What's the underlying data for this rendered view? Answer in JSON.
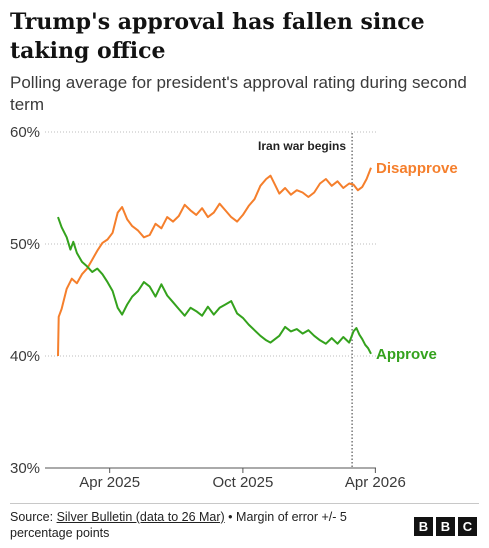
{
  "header": {
    "title": "Trump's approval has fallen since taking office",
    "subtitle": "Polling average for president's approval rating during second term"
  },
  "chart_data": {
    "type": "line",
    "title": "Trump's approval has fallen since taking office",
    "subtitle": "Polling average for president's approval rating during second term",
    "xlabel": "",
    "ylabel": "",
    "x_range": [
      "2025-01-20",
      "2026-03-26"
    ],
    "ylim": [
      30,
      60
    ],
    "y_ticks": [
      30,
      40,
      50,
      60
    ],
    "y_tick_labels": [
      "30%",
      "40%",
      "50%",
      "60%"
    ],
    "x_ticks": [
      "2025-04-01",
      "2025-10-01",
      "2026-04-01"
    ],
    "x_tick_labels": [
      "Apr 2025",
      "Oct 2025",
      "Apr 2026"
    ],
    "grid": "horizontal dotted",
    "legend": "direct labels at line ends",
    "annotations": [
      {
        "date": "2026-02-28",
        "label": "Iran war begins",
        "style": "dotted vertical line"
      }
    ],
    "series": [
      {
        "name": "Disapprove",
        "color": "#f57f2c",
        "points": [
          [
            "2025-01-20",
            40.0
          ],
          [
            "2025-01-21",
            43.5
          ],
          [
            "2025-01-25",
            44.2
          ],
          [
            "2025-02-01",
            46.0
          ],
          [
            "2025-02-08",
            46.9
          ],
          [
            "2025-02-15",
            46.5
          ],
          [
            "2025-02-22",
            47.3
          ],
          [
            "2025-03-01",
            47.8
          ],
          [
            "2025-03-08",
            48.6
          ],
          [
            "2025-03-15",
            49.4
          ],
          [
            "2025-03-22",
            50.1
          ],
          [
            "2025-03-29",
            50.4
          ],
          [
            "2025-04-05",
            51.0
          ],
          [
            "2025-04-12",
            52.8
          ],
          [
            "2025-04-18",
            53.3
          ],
          [
            "2025-04-25",
            52.2
          ],
          [
            "2025-05-02",
            51.6
          ],
          [
            "2025-05-10",
            51.2
          ],
          [
            "2025-05-18",
            50.6
          ],
          [
            "2025-05-26",
            50.8
          ],
          [
            "2025-06-03",
            51.8
          ],
          [
            "2025-06-11",
            51.4
          ],
          [
            "2025-06-19",
            52.4
          ],
          [
            "2025-06-27",
            52.0
          ],
          [
            "2025-07-05",
            52.5
          ],
          [
            "2025-07-13",
            53.5
          ],
          [
            "2025-07-21",
            53.0
          ],
          [
            "2025-07-29",
            52.6
          ],
          [
            "2025-08-06",
            53.2
          ],
          [
            "2025-08-14",
            52.4
          ],
          [
            "2025-08-22",
            52.8
          ],
          [
            "2025-08-30",
            53.6
          ],
          [
            "2025-09-07",
            53.0
          ],
          [
            "2025-09-15",
            52.4
          ],
          [
            "2025-09-23",
            52.0
          ],
          [
            "2025-10-01",
            52.6
          ],
          [
            "2025-10-09",
            53.4
          ],
          [
            "2025-10-17",
            54.0
          ],
          [
            "2025-10-25",
            55.2
          ],
          [
            "2025-11-02",
            55.8
          ],
          [
            "2025-11-08",
            56.1
          ],
          [
            "2025-11-14",
            55.3
          ],
          [
            "2025-11-20",
            54.5
          ],
          [
            "2025-11-28",
            55.0
          ],
          [
            "2025-12-06",
            54.4
          ],
          [
            "2025-12-14",
            54.8
          ],
          [
            "2025-12-22",
            54.6
          ],
          [
            "2025-12-30",
            54.2
          ],
          [
            "2026-01-07",
            54.6
          ],
          [
            "2026-01-15",
            55.4
          ],
          [
            "2026-01-23",
            55.8
          ],
          [
            "2026-01-31",
            55.2
          ],
          [
            "2026-02-08",
            55.6
          ],
          [
            "2026-02-16",
            55.0
          ],
          [
            "2026-02-24",
            55.4
          ],
          [
            "2026-03-02",
            55.3
          ],
          [
            "2026-03-08",
            54.8
          ],
          [
            "2026-03-14",
            55.1
          ],
          [
            "2026-03-20",
            55.8
          ],
          [
            "2026-03-26",
            56.8
          ]
        ]
      },
      {
        "name": "Approve",
        "color": "#34a21d",
        "points": [
          [
            "2025-01-20",
            52.4
          ],
          [
            "2025-01-25",
            51.5
          ],
          [
            "2025-02-01",
            50.6
          ],
          [
            "2025-02-06",
            49.5
          ],
          [
            "2025-02-10",
            50.2
          ],
          [
            "2025-02-15",
            49.2
          ],
          [
            "2025-02-22",
            48.4
          ],
          [
            "2025-03-01",
            48.0
          ],
          [
            "2025-03-08",
            47.5
          ],
          [
            "2025-03-15",
            47.8
          ],
          [
            "2025-03-22",
            47.3
          ],
          [
            "2025-03-29",
            46.6
          ],
          [
            "2025-04-05",
            45.8
          ],
          [
            "2025-04-12",
            44.3
          ],
          [
            "2025-04-18",
            43.7
          ],
          [
            "2025-04-25",
            44.6
          ],
          [
            "2025-05-02",
            45.3
          ],
          [
            "2025-05-10",
            45.8
          ],
          [
            "2025-05-18",
            46.6
          ],
          [
            "2025-05-26",
            46.2
          ],
          [
            "2025-06-03",
            45.3
          ],
          [
            "2025-06-11",
            46.4
          ],
          [
            "2025-06-19",
            45.4
          ],
          [
            "2025-06-27",
            44.8
          ],
          [
            "2025-07-05",
            44.2
          ],
          [
            "2025-07-13",
            43.6
          ],
          [
            "2025-07-21",
            44.3
          ],
          [
            "2025-07-29",
            44.0
          ],
          [
            "2025-08-06",
            43.6
          ],
          [
            "2025-08-14",
            44.4
          ],
          [
            "2025-08-22",
            43.7
          ],
          [
            "2025-08-30",
            44.3
          ],
          [
            "2025-09-07",
            44.6
          ],
          [
            "2025-09-15",
            44.9
          ],
          [
            "2025-09-23",
            43.8
          ],
          [
            "2025-10-01",
            43.4
          ],
          [
            "2025-10-09",
            42.8
          ],
          [
            "2025-10-17",
            42.3
          ],
          [
            "2025-10-25",
            41.8
          ],
          [
            "2025-11-02",
            41.4
          ],
          [
            "2025-11-08",
            41.2
          ],
          [
            "2025-11-14",
            41.5
          ],
          [
            "2025-11-20",
            41.8
          ],
          [
            "2025-11-28",
            42.6
          ],
          [
            "2025-12-06",
            42.2
          ],
          [
            "2025-12-14",
            42.4
          ],
          [
            "2025-12-22",
            42.0
          ],
          [
            "2025-12-30",
            42.3
          ],
          [
            "2026-01-07",
            41.8
          ],
          [
            "2026-01-15",
            41.4
          ],
          [
            "2026-01-23",
            41.1
          ],
          [
            "2026-01-31",
            41.6
          ],
          [
            "2026-02-08",
            41.1
          ],
          [
            "2026-02-16",
            41.7
          ],
          [
            "2026-02-24",
            41.2
          ],
          [
            "2026-03-02",
            42.2
          ],
          [
            "2026-03-06",
            42.5
          ],
          [
            "2026-03-10",
            41.9
          ],
          [
            "2026-03-14",
            41.5
          ],
          [
            "2026-03-18",
            41.0
          ],
          [
            "2026-03-22",
            40.7
          ],
          [
            "2026-03-26",
            40.2
          ]
        ]
      }
    ]
  },
  "footer": {
    "source_prefix": "Source: ",
    "source_link": "Silver Bulletin (data to 26 Mar)",
    "note": " • Margin of error +/- 5 percentage points",
    "logo": [
      "B",
      "B",
      "C"
    ]
  }
}
